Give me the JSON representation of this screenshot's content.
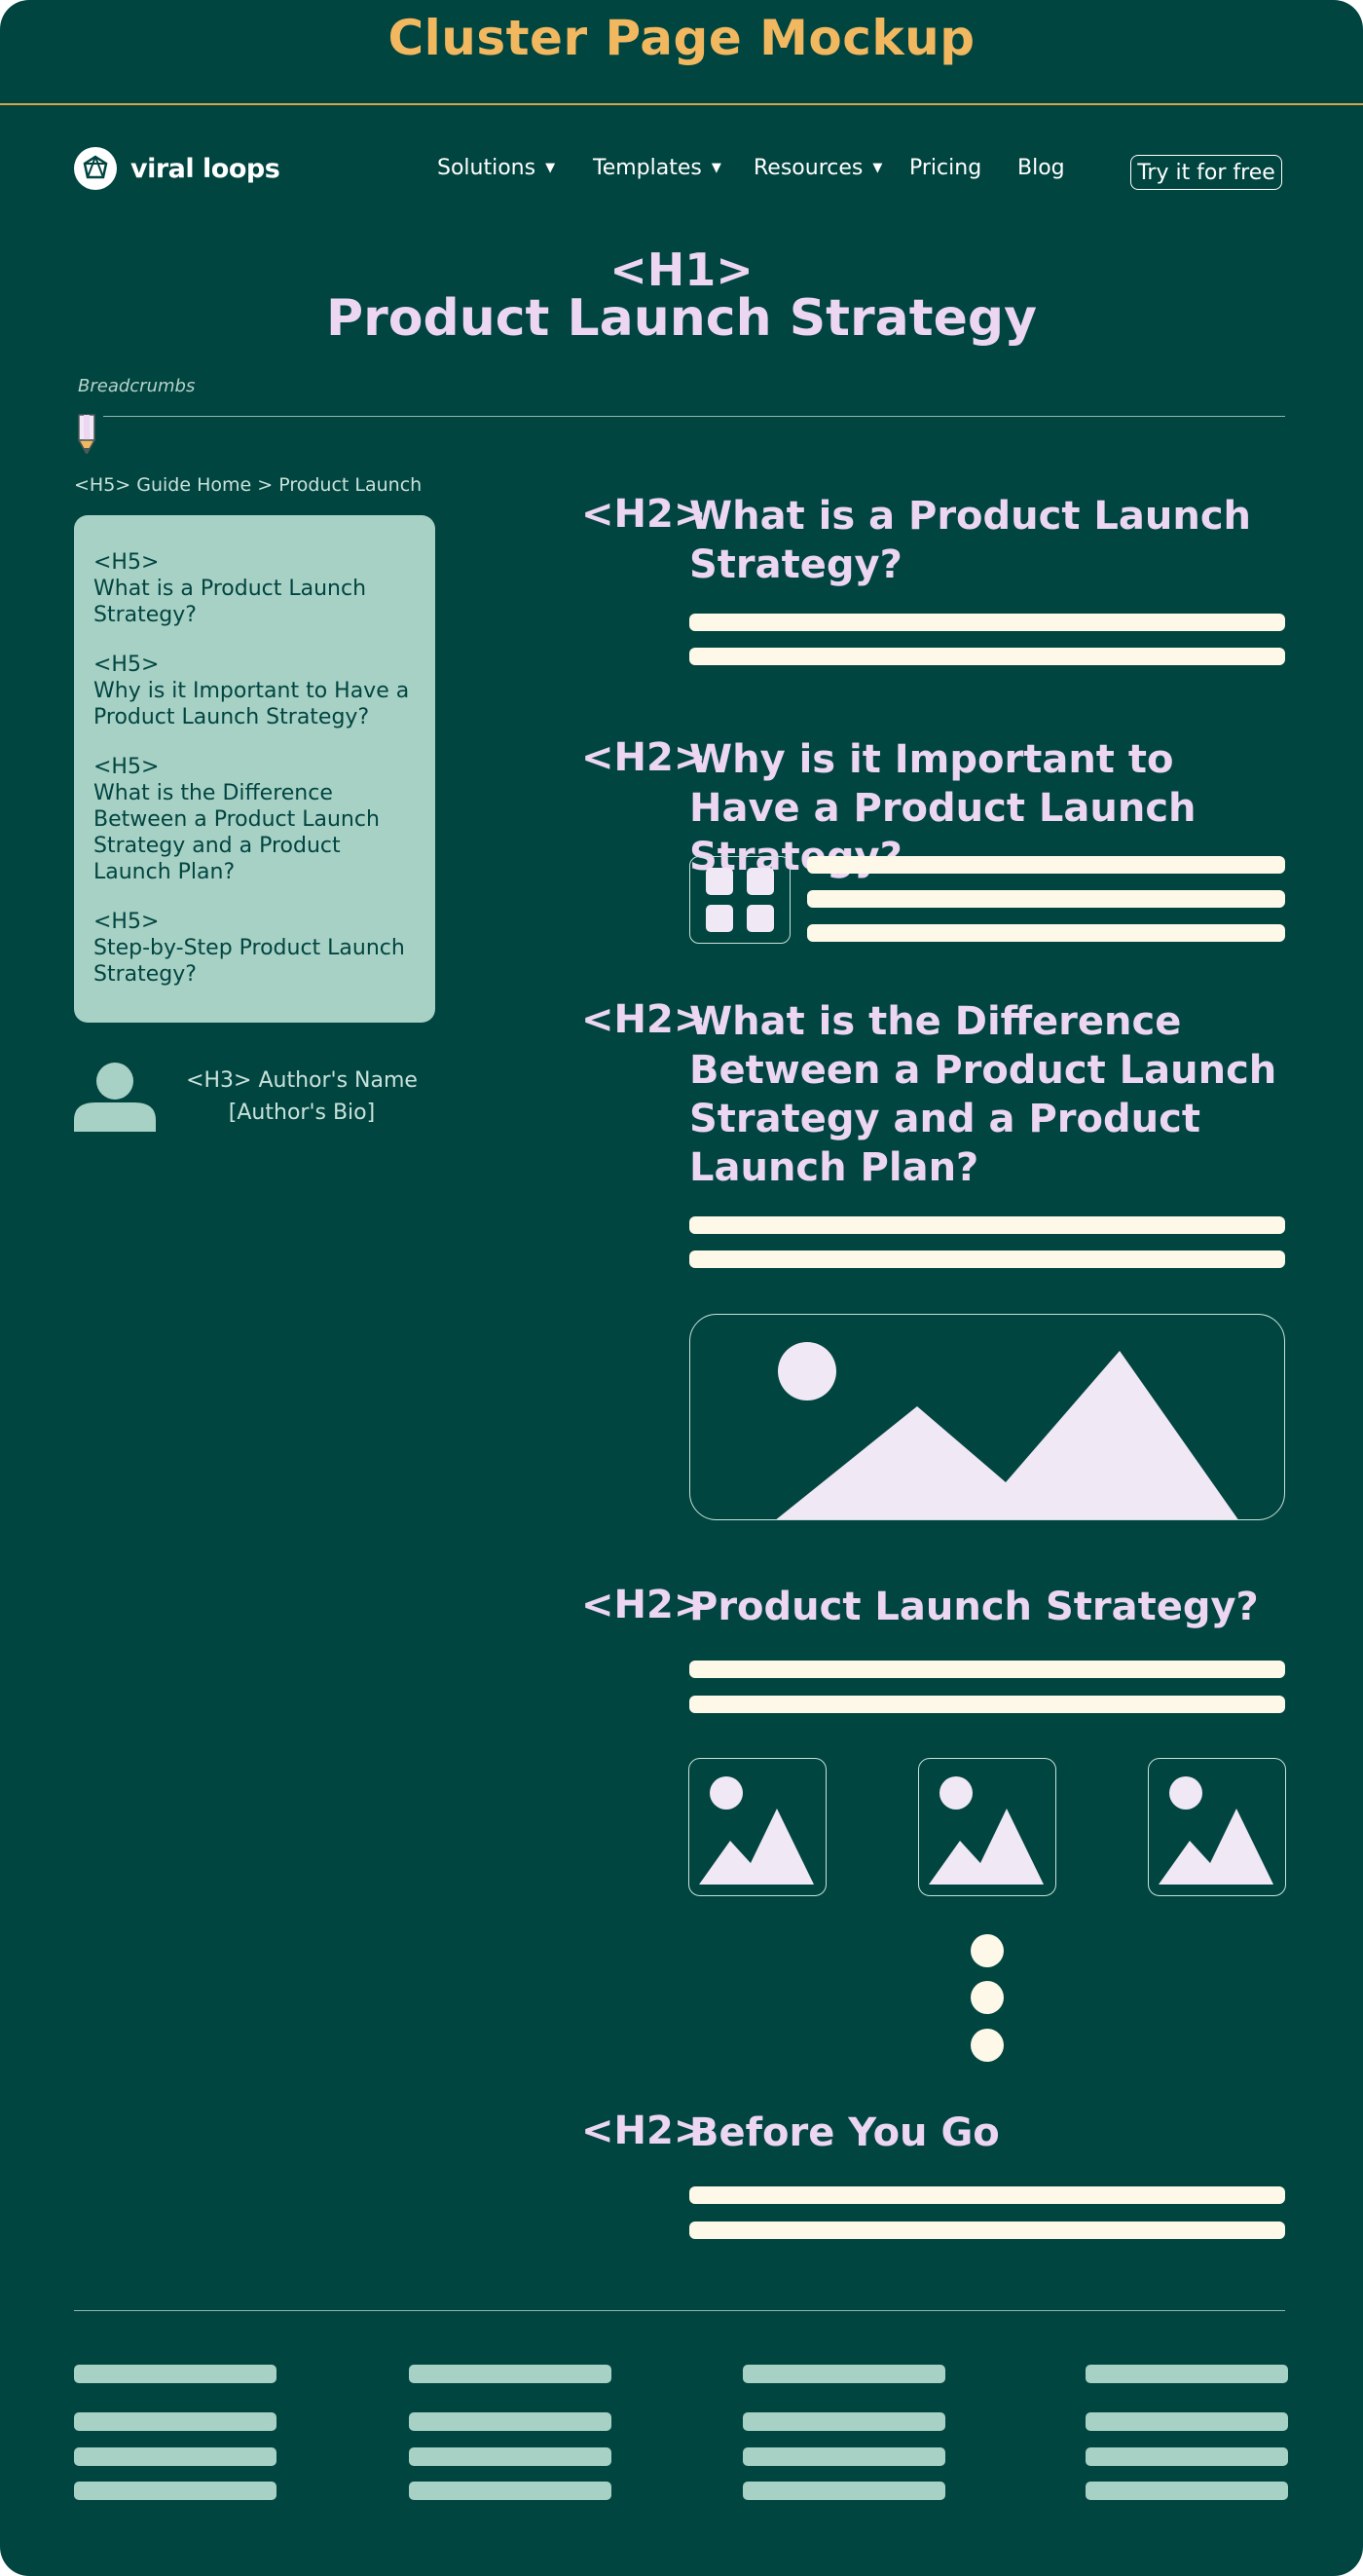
{
  "mockup_title": "Cluster Page Mockup",
  "header": {
    "logo_text": "viral loops",
    "nav": [
      {
        "label": "Solutions",
        "dropdown": true
      },
      {
        "label": "Templates",
        "dropdown": true
      },
      {
        "label": "Resources",
        "dropdown": true
      },
      {
        "label": "Pricing",
        "dropdown": false
      },
      {
        "label": "Blog",
        "dropdown": false
      }
    ],
    "cta_label": "Try it for free"
  },
  "hero": {
    "tag": "<H1>",
    "title": "Product Launch Strategy"
  },
  "breadcrumbs_label": "Breadcrumbs",
  "breadcrumbs": "<H5> Guide Home > Product Launch",
  "toc": [
    {
      "tag": "<H5>",
      "text": "What is a Product Launch Strategy?"
    },
    {
      "tag": "<H5>",
      "text": "Why is it Important to Have a Product Launch Strategy?"
    },
    {
      "tag": "<H5>",
      "text": "What is the Difference Between a Product Launch Strategy and a Product Launch Plan?"
    },
    {
      "tag": "<H5>",
      "text": "Step-by-Step Product Launch Strategy?"
    }
  ],
  "author": {
    "name": "<H3> Author's Name",
    "bio": "[Author's Bio]"
  },
  "sections": [
    {
      "tag": "<H2>",
      "title": "What is a Product Launch Strategy?"
    },
    {
      "tag": "<H2>",
      "title": "Why is it Important to Have a Product Launch Strategy?"
    },
    {
      "tag": "<H2>",
      "title": "What is the Difference Between a Product Launch Strategy and a Product Launch Plan?"
    },
    {
      "tag": "<H2>",
      "title": "Product Launch Strategy?"
    },
    {
      "tag": "<H2>",
      "title": "Before You Go"
    }
  ],
  "colors": {
    "background": "#014540",
    "mockup_title": "#f2b860",
    "heading": "#ecd6f1",
    "text_placeholder": "#fdf8e8",
    "panel": "#a8d1c6"
  },
  "icons": [
    "viral-loops-logo-icon",
    "pencil-icon",
    "grid-icon",
    "image-placeholder-icon",
    "avatar-icon"
  ]
}
